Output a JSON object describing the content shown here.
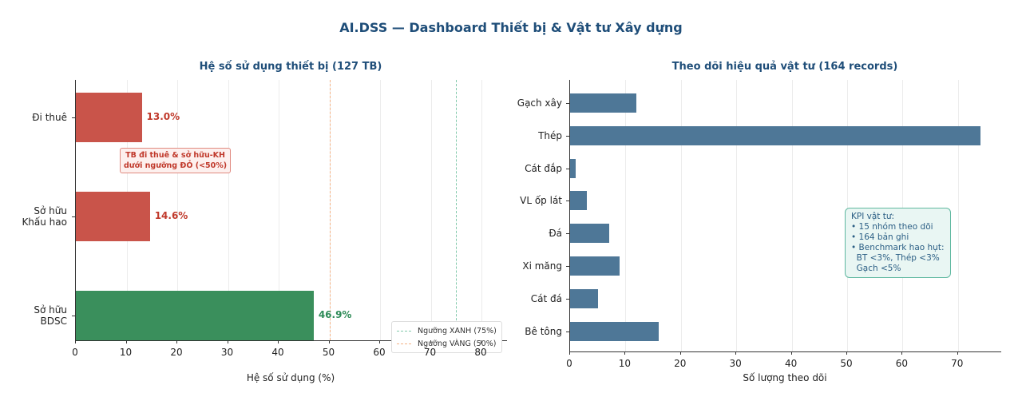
{
  "suptitle": "AI.DSS — Dashboard Thiết bị & Vật tư Xây dựng",
  "left": {
    "title": "Hệ số sử dụng thiết bị (127 TB)",
    "xlabel": "Hệ số sử dụng (%)",
    "xticks": [
      "0",
      "10",
      "20",
      "30",
      "40",
      "50",
      "60",
      "70",
      "80"
    ],
    "bars": [
      {
        "label_line1": "Đi thuê",
        "label_line2": "",
        "value": 13.0,
        "value_label": "13.0%",
        "color": "#c9544a",
        "label_color": "#c0392b"
      },
      {
        "label_line1": "Sở hữu",
        "label_line2": "Khấu hao",
        "value": 14.6,
        "value_label": "14.6%",
        "color": "#c9544a",
        "label_color": "#c0392b"
      },
      {
        "label_line1": "Sở hữu",
        "label_line2": "BDSC",
        "value": 46.9,
        "value_label": "46.9%",
        "color": "#3a8f5c",
        "label_color": "#2e8b57"
      }
    ],
    "annotation_line1": "TB đi thuê & sở hữu-KH",
    "annotation_line2": "dưới ngưỡng ĐỎ (<50%)",
    "thresholds": {
      "green": {
        "value": 75,
        "label": "Ngưỡng XANH (75%)",
        "color": "#7fc8a9"
      },
      "yellow": {
        "value": 50,
        "label": "Ngưỡng VÀNG (50%)",
        "color": "#f4b183"
      }
    }
  },
  "right": {
    "title": "Theo dõi hiệu quả vật tư (164 records)",
    "xlabel": "Số lượng theo dõi",
    "xticks": [
      "0",
      "10",
      "20",
      "30",
      "40",
      "50",
      "60",
      "70"
    ],
    "bar_color": "#4e7797",
    "bars": [
      {
        "label": "Gạch xây",
        "value": 12
      },
      {
        "label": "Thép",
        "value": 74
      },
      {
        "label": "Cát đắp",
        "value": 1
      },
      {
        "label": "VL ốp lát",
        "value": 3
      },
      {
        "label": "Đá",
        "value": 7
      },
      {
        "label": "Xi măng",
        "value": 9
      },
      {
        "label": "Cát đá",
        "value": 5
      },
      {
        "label": "Bê tông",
        "value": 16
      }
    ],
    "kpi_box": "KPI vật tư:\n• 15 nhóm theo dõi\n• 164 bản ghi\n• Benchmark hao hụt:\n  BT <3%, Thép <3%\n  Gạch <5%"
  },
  "chart_data": [
    {
      "type": "bar",
      "orientation": "horizontal",
      "title": "Hệ số sử dụng thiết bị (127 TB)",
      "categories": [
        "Đi thuê",
        "Sở hữu Khấu hao",
        "Sở hữu BDSC"
      ],
      "values": [
        13.0,
        14.6,
        46.9
      ],
      "xlabel": "Hệ số sử dụng (%)",
      "ylabel": "",
      "xlim": [
        0,
        85
      ],
      "reference_lines": [
        {
          "value": 75,
          "label": "Ngưỡng XANH (75%)"
        },
        {
          "value": 50,
          "label": "Ngưỡng VÀNG (50%)"
        }
      ],
      "annotations": [
        "TB đi thuê & sở hữu-KH dưới ngưỡng ĐỎ (<50%)"
      ],
      "legend_position": "lower right",
      "grid": true
    },
    {
      "type": "bar",
      "orientation": "horizontal",
      "title": "Theo dõi hiệu quả vật tư (164 records)",
      "categories": [
        "Gạch xây",
        "Thép",
        "Cát đắp",
        "VL ốp lát",
        "Đá",
        "Xi măng",
        "Cát đá",
        "Bê tông"
      ],
      "values": [
        12,
        74,
        1,
        3,
        7,
        9,
        5,
        16
      ],
      "xlabel": "Số lượng theo dõi",
      "ylabel": "",
      "xlim": [
        0,
        78
      ],
      "annotations": [
        "KPI vật tư: • 15 nhóm theo dõi • 164 bản ghi • Benchmark hao hụt: BT <3%, Thép <3% Gạch <5%"
      ],
      "grid": true
    }
  ]
}
